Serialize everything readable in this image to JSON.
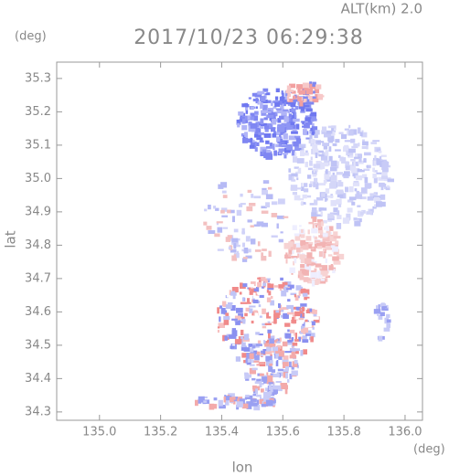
{
  "chart_data": {
    "type": "field",
    "title": "2017/10/23 06:29:38",
    "subtitle": "ALT(km) 2.0",
    "x_label": "lon",
    "y_label": "lat",
    "x_unit": "(deg)",
    "y_unit": "(deg)",
    "xlim": [
      134.86,
      136.057
    ],
    "ylim": [
      34.275,
      35.349
    ],
    "xticks": [
      {
        "value": 135,
        "label": "135.0"
      },
      135.2,
      135.4,
      135.6,
      135.8,
      {
        "value": 136,
        "label": "136.0"
      }
    ],
    "yticks": [
      34.3,
      34.4,
      34.5,
      34.6,
      34.7,
      34.8,
      34.9,
      {
        "value": 35,
        "label": "35.0"
      },
      35.1,
      35.2,
      35.3
    ]
  }
}
